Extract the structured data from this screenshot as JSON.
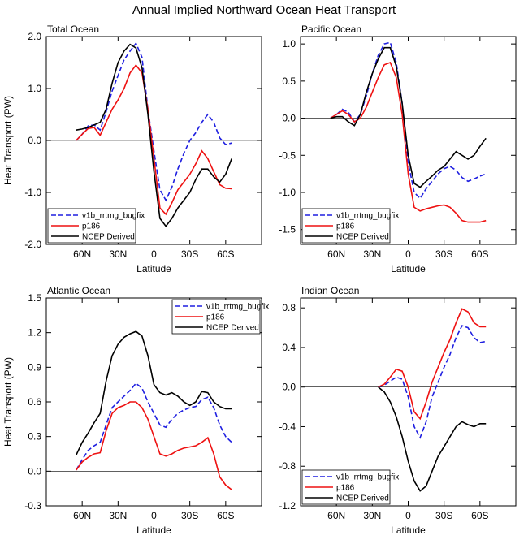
{
  "title": "Annual Implied Northward Ocean Heat Transport",
  "colors": {
    "v1b_rrtmg_bugfix": "#1f1fe0",
    "p186": "#ee1111",
    "NCEP Derived": "#000000"
  },
  "chart_data": [
    {
      "type": "line",
      "title": "Total Ocean",
      "xlabel": "Latitude",
      "ylabel": "Heat Transport (PW)",
      "xlim": [
        90,
        -90
      ],
      "ylim": [
        -2.0,
        2.0
      ],
      "xticks": [
        {
          "v": 60,
          "label": "60N"
        },
        {
          "v": 30,
          "label": "30N"
        },
        {
          "v": 0,
          "label": "0"
        },
        {
          "v": -30,
          "label": "30S"
        },
        {
          "v": -60,
          "label": "60S"
        }
      ],
      "yticks": [
        {
          "v": 2.0,
          "label": "2.0"
        },
        {
          "v": 1.0,
          "label": "1.0"
        },
        {
          "v": 0.0,
          "label": "0.0"
        },
        {
          "v": -1.0,
          "label": "-1.0"
        },
        {
          "v": -2.0,
          "label": "-2.0"
        }
      ],
      "legend": "bottom-left",
      "series": [
        {
          "name": "v1b_rrtmg_bugfix",
          "style": "dashed",
          "x": [
            65,
            60,
            55,
            50,
            45,
            40,
            35,
            30,
            25,
            20,
            15,
            10,
            5,
            0,
            -5,
            -10,
            -15,
            -20,
            -25,
            -30,
            -35,
            -40,
            -45,
            -50,
            -55,
            -60,
            -65
          ],
          "y": [
            0.0,
            0.12,
            0.28,
            0.3,
            0.2,
            0.55,
            0.95,
            1.25,
            1.55,
            1.72,
            1.87,
            1.6,
            0.6,
            -0.2,
            -0.95,
            -1.15,
            -0.9,
            -0.55,
            -0.25,
            0.0,
            0.15,
            0.35,
            0.5,
            0.35,
            0.05,
            -0.08,
            -0.05
          ]
        },
        {
          "name": "p186",
          "style": "solid",
          "x": [
            65,
            60,
            55,
            50,
            45,
            40,
            35,
            30,
            25,
            20,
            15,
            10,
            5,
            0,
            -5,
            -10,
            -15,
            -20,
            -25,
            -30,
            -35,
            -40,
            -45,
            -50,
            -55,
            -60,
            -65
          ],
          "y": [
            0.0,
            0.12,
            0.23,
            0.25,
            0.1,
            0.35,
            0.6,
            0.78,
            1.0,
            1.3,
            1.45,
            1.3,
            0.6,
            -0.35,
            -1.3,
            -1.42,
            -1.2,
            -0.95,
            -0.8,
            -0.65,
            -0.45,
            -0.2,
            -0.35,
            -0.6,
            -0.85,
            -0.92,
            -0.93
          ]
        },
        {
          "name": "NCEP Derived",
          "style": "solid",
          "x": [
            65,
            60,
            55,
            50,
            45,
            40,
            35,
            30,
            25,
            20,
            15,
            10,
            5,
            0,
            -5,
            -10,
            -15,
            -20,
            -25,
            -30,
            -35,
            -40,
            -45,
            -50,
            -55,
            -60,
            -65
          ],
          "y": [
            0.2,
            0.22,
            0.25,
            0.3,
            0.35,
            0.6,
            1.1,
            1.5,
            1.72,
            1.85,
            1.78,
            1.4,
            0.5,
            -0.6,
            -1.5,
            -1.65,
            -1.5,
            -1.3,
            -1.15,
            -1.0,
            -0.75,
            -0.55,
            -0.55,
            -0.7,
            -0.8,
            -0.65,
            -0.35
          ]
        }
      ]
    },
    {
      "type": "line",
      "title": "Pacific Ocean",
      "xlabel": "Latitude",
      "ylabel": "",
      "xlim": [
        90,
        -90
      ],
      "ylim": [
        -1.7,
        1.1
      ],
      "xticks": [
        {
          "v": 60,
          "label": "60N"
        },
        {
          "v": 30,
          "label": "30N"
        },
        {
          "v": 0,
          "label": "0"
        },
        {
          "v": -30,
          "label": "30S"
        },
        {
          "v": -60,
          "label": "60S"
        }
      ],
      "yticks": [
        {
          "v": 1.0,
          "label": "1.0"
        },
        {
          "v": 0.5,
          "label": "0.5"
        },
        {
          "v": 0.0,
          "label": "0.0"
        },
        {
          "v": -0.5,
          "label": "-0.5"
        },
        {
          "v": -1.0,
          "label": "-1.0"
        },
        {
          "v": -1.5,
          "label": "-1.5"
        }
      ],
      "legend": "bottom-left",
      "series": [
        {
          "name": "v1b_rrtmg_bugfix",
          "style": "dashed",
          "x": [
            65,
            60,
            55,
            50,
            45,
            40,
            35,
            30,
            25,
            20,
            15,
            10,
            5,
            0,
            -5,
            -10,
            -15,
            -20,
            -25,
            -30,
            -35,
            -40,
            -45,
            -50,
            -55,
            -60,
            -65
          ],
          "y": [
            0.0,
            0.05,
            0.12,
            0.08,
            -0.05,
            0.05,
            0.3,
            0.6,
            0.85,
            1.0,
            1.02,
            0.75,
            0.2,
            -0.6,
            -1.0,
            -1.08,
            -0.95,
            -0.85,
            -0.75,
            -0.68,
            -0.65,
            -0.7,
            -0.8,
            -0.85,
            -0.82,
            -0.78,
            -0.75
          ]
        },
        {
          "name": "p186",
          "style": "solid",
          "x": [
            65,
            60,
            55,
            50,
            45,
            40,
            35,
            30,
            25,
            20,
            15,
            10,
            5,
            0,
            -5,
            -10,
            -15,
            -20,
            -25,
            -30,
            -35,
            -40,
            -45,
            -50,
            -55,
            -60,
            -65
          ],
          "y": [
            0.0,
            0.05,
            0.1,
            0.05,
            -0.05,
            0.0,
            0.15,
            0.35,
            0.55,
            0.72,
            0.75,
            0.55,
            0.05,
            -0.75,
            -1.2,
            -1.25,
            -1.22,
            -1.2,
            -1.18,
            -1.17,
            -1.2,
            -1.28,
            -1.38,
            -1.4,
            -1.4,
            -1.4,
            -1.38
          ]
        },
        {
          "name": "NCEP Derived",
          "style": "solid",
          "x": [
            65,
            60,
            55,
            50,
            45,
            40,
            35,
            30,
            25,
            20,
            15,
            10,
            5,
            0,
            -5,
            -10,
            -15,
            -20,
            -25,
            -30,
            -35,
            -40,
            -45,
            -50,
            -55,
            -60,
            -65
          ],
          "y": [
            0.0,
            0.02,
            0.02,
            -0.05,
            -0.1,
            0.05,
            0.35,
            0.6,
            0.8,
            0.95,
            0.95,
            0.7,
            0.2,
            -0.5,
            -0.88,
            -0.93,
            -0.85,
            -0.78,
            -0.7,
            -0.65,
            -0.55,
            -0.45,
            -0.5,
            -0.55,
            -0.5,
            -0.38,
            -0.27
          ]
        }
      ]
    },
    {
      "type": "line",
      "title": "Atlantic Ocean",
      "xlabel": "Latitude",
      "ylabel": "Heat Transport (PW)",
      "xlim": [
        90,
        -90
      ],
      "ylim": [
        -0.3,
        1.5
      ],
      "xticks": [
        {
          "v": 60,
          "label": "60N"
        },
        {
          "v": 30,
          "label": "30N"
        },
        {
          "v": 0,
          "label": "0"
        },
        {
          "v": -30,
          "label": "30S"
        },
        {
          "v": -60,
          "label": "60S"
        }
      ],
      "yticks": [
        {
          "v": 1.5,
          "label": "1.5"
        },
        {
          "v": 1.2,
          "label": "1.2"
        },
        {
          "v": 0.9,
          "label": "0.9"
        },
        {
          "v": 0.6,
          "label": "0.6"
        },
        {
          "v": 0.3,
          "label": "0.3"
        },
        {
          "v": 0.0,
          "label": "0.0"
        },
        {
          "v": -0.3,
          "label": "-0.3"
        }
      ],
      "legend": "top-right",
      "series": [
        {
          "name": "v1b_rrtmg_bugfix",
          "style": "dashed",
          "x": [
            65,
            60,
            55,
            50,
            45,
            40,
            35,
            30,
            25,
            20,
            15,
            10,
            5,
            0,
            -5,
            -10,
            -15,
            -20,
            -25,
            -30,
            -35,
            -40,
            -45,
            -50,
            -55,
            -60,
            -65
          ],
          "y": [
            0.01,
            0.1,
            0.18,
            0.22,
            0.25,
            0.4,
            0.55,
            0.6,
            0.65,
            0.7,
            0.76,
            0.72,
            0.6,
            0.5,
            0.4,
            0.38,
            0.45,
            0.5,
            0.53,
            0.55,
            0.56,
            0.62,
            0.64,
            0.55,
            0.4,
            0.3,
            0.25
          ]
        },
        {
          "name": "p186",
          "style": "solid",
          "x": [
            65,
            60,
            55,
            50,
            45,
            40,
            35,
            30,
            25,
            20,
            15,
            10,
            5,
            0,
            -5,
            -10,
            -15,
            -20,
            -25,
            -30,
            -35,
            -40,
            -45,
            -50,
            -55,
            -60,
            -65
          ],
          "y": [
            0.01,
            0.08,
            0.12,
            0.15,
            0.16,
            0.35,
            0.5,
            0.55,
            0.57,
            0.6,
            0.6,
            0.55,
            0.45,
            0.3,
            0.15,
            0.13,
            0.15,
            0.18,
            0.2,
            0.21,
            0.22,
            0.25,
            0.29,
            0.15,
            -0.05,
            -0.12,
            -0.16
          ]
        },
        {
          "name": "NCEP Derived",
          "style": "solid",
          "x": [
            65,
            60,
            55,
            50,
            45,
            40,
            35,
            30,
            25,
            20,
            15,
            10,
            5,
            0,
            -5,
            -10,
            -15,
            -20,
            -25,
            -30,
            -35,
            -40,
            -45,
            -50,
            -55,
            -60,
            -65
          ],
          "y": [
            0.14,
            0.25,
            0.33,
            0.42,
            0.5,
            0.78,
            1.0,
            1.1,
            1.16,
            1.19,
            1.21,
            1.17,
            1.0,
            0.75,
            0.68,
            0.66,
            0.68,
            0.65,
            0.6,
            0.57,
            0.6,
            0.69,
            0.68,
            0.6,
            0.56,
            0.54,
            0.54
          ]
        }
      ]
    },
    {
      "type": "line",
      "title": "Indian Ocean",
      "xlabel": "Latitude",
      "ylabel": "",
      "xlim": [
        90,
        -90
      ],
      "ylim": [
        -1.2,
        0.9
      ],
      "xticks": [
        {
          "v": 60,
          "label": "60N"
        },
        {
          "v": 30,
          "label": "30N"
        },
        {
          "v": 0,
          "label": "0"
        },
        {
          "v": -30,
          "label": "30S"
        },
        {
          "v": -60,
          "label": "60S"
        }
      ],
      "yticks": [
        {
          "v": 0.8,
          "label": "0.8"
        },
        {
          "v": 0.4,
          "label": "0.4"
        },
        {
          "v": 0.0,
          "label": "0.0"
        },
        {
          "v": -0.4,
          "label": "-0.4"
        },
        {
          "v": -0.8,
          "label": "-0.8"
        },
        {
          "v": -1.2,
          "label": "-1.2"
        }
      ],
      "legend": "bottom-left",
      "series": [
        {
          "name": "v1b_rrtmg_bugfix",
          "style": "dashed",
          "x": [
            25,
            20,
            15,
            10,
            5,
            0,
            -5,
            -10,
            -15,
            -20,
            -25,
            -30,
            -35,
            -40,
            -45,
            -50,
            -55,
            -60,
            -65
          ],
          "y": [
            0.0,
            0.02,
            0.06,
            0.1,
            0.08,
            -0.1,
            -0.4,
            -0.51,
            -0.35,
            -0.1,
            0.05,
            0.2,
            0.33,
            0.5,
            0.62,
            0.6,
            0.5,
            0.45,
            0.46
          ]
        },
        {
          "name": "p186",
          "style": "solid",
          "x": [
            25,
            20,
            15,
            10,
            5,
            0,
            -5,
            -10,
            -15,
            -20,
            -25,
            -30,
            -35,
            -40,
            -45,
            -50,
            -55,
            -60,
            -65
          ],
          "y": [
            0.0,
            0.03,
            0.1,
            0.18,
            0.16,
            0.0,
            -0.25,
            -0.32,
            -0.15,
            0.05,
            0.2,
            0.35,
            0.48,
            0.65,
            0.79,
            0.76,
            0.65,
            0.61,
            0.61
          ]
        },
        {
          "name": "NCEP Derived",
          "style": "solid",
          "x": [
            25,
            20,
            15,
            10,
            5,
            0,
            -5,
            -10,
            -15,
            -20,
            -25,
            -30,
            -35,
            -40,
            -45,
            -50,
            -55,
            -60,
            -65
          ],
          "y": [
            0.0,
            -0.05,
            -0.15,
            -0.3,
            -0.5,
            -0.75,
            -0.95,
            -1.05,
            -1.0,
            -0.85,
            -0.7,
            -0.6,
            -0.5,
            -0.4,
            -0.35,
            -0.38,
            -0.4,
            -0.37,
            -0.37
          ]
        }
      ]
    }
  ]
}
